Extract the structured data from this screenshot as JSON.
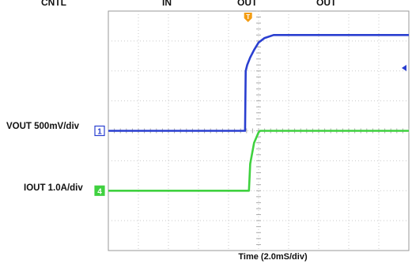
{
  "header_fragments": [
    "CNTL",
    "IN",
    "OUT",
    "OUT"
  ],
  "chart_data": {
    "type": "line",
    "title": "",
    "xlabel": "Time (2.0mS/div)",
    "x_divisions": 10,
    "y_divisions": 8,
    "grid": true,
    "xlim": [
      0,
      10
    ],
    "ylim": [
      0,
      8
    ],
    "trigger_marker": {
      "label": "T",
      "color": "#f39c12",
      "x_div": 4.65
    },
    "series": [
      {
        "name": "VOUT",
        "label": "VOUT 500mV/div",
        "channel": "1",
        "color": "#2a3fd0",
        "scale": "500mV/div",
        "x": [
          0,
          4.55,
          4.57,
          4.62,
          4.72,
          4.85,
          5.0,
          5.2,
          5.5,
          6.0,
          10
        ],
        "y": [
          4.0,
          4.0,
          6.0,
          6.2,
          6.45,
          6.7,
          6.95,
          7.1,
          7.2,
          7.2,
          7.2
        ]
      },
      {
        "name": "IOUT",
        "label": "IOUT 1.0A/div",
        "channel": "4",
        "color": "#3fd13f",
        "scale": "1.0A/div",
        "x": [
          0,
          4.68,
          4.72,
          4.85,
          5.0,
          5.05,
          10
        ],
        "y": [
          2.0,
          2.0,
          2.9,
          3.6,
          3.95,
          4.0,
          4.0
        ]
      }
    ],
    "offset_marker": {
      "color": "#2a3fd0",
      "y_div": 6.1
    }
  }
}
